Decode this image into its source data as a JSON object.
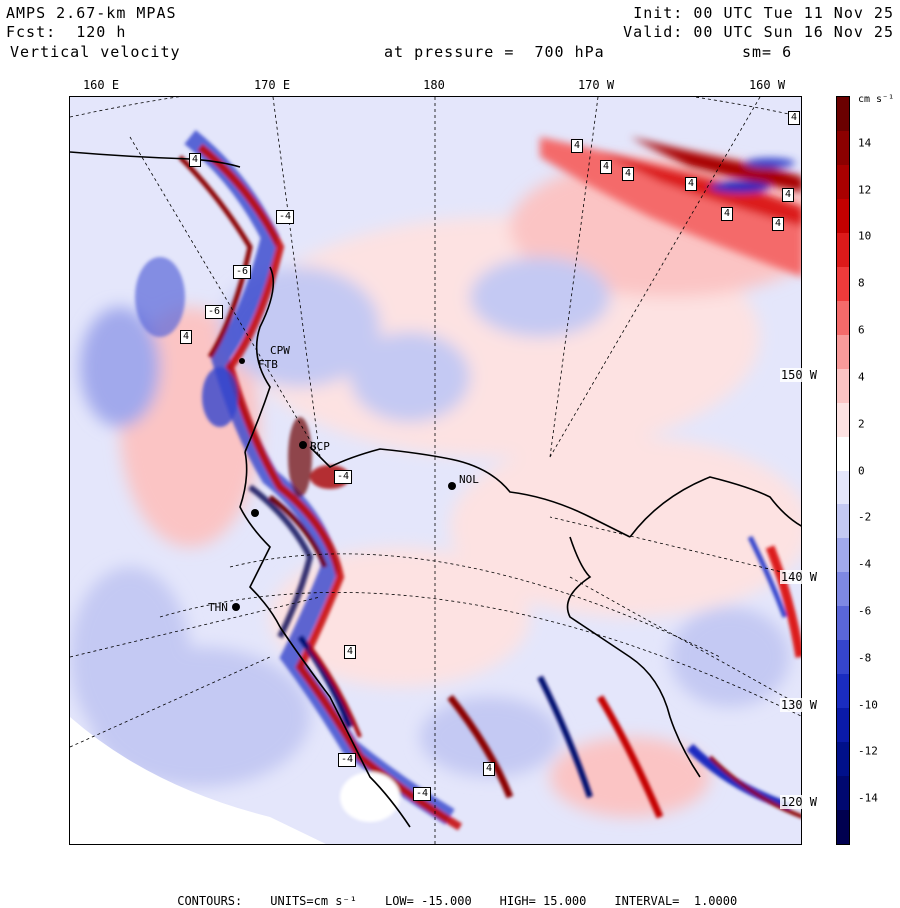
{
  "header": {
    "model": "AMPS 2.67-km MPAS",
    "forecast": "Fcst:  120 h",
    "field": "Vertical velocity",
    "init": "Init: 00 UTC Tue 11 Nov 25",
    "valid": "Valid: 00 UTC Sun 16 Nov 25",
    "level": "at pressure =  700 hPa",
    "smoothing": "sm= 6"
  },
  "longitude_labels": [
    "160 E",
    "170 E",
    "180",
    "170 W",
    "160 W"
  ],
  "latitude_labels": [
    "150 W",
    "140 W",
    "130 W",
    "120 W"
  ],
  "colorbar": {
    "unit": "cm s⁻¹",
    "ticks": [
      "14",
      "12",
      "10",
      "8",
      "6",
      "4",
      "2",
      "0",
      "-2",
      "-4",
      "-6",
      "-8",
      "-10",
      "-12",
      "-14"
    ],
    "colors": [
      "#6b0000",
      "#8b0000",
      "#a80000",
      "#c40000",
      "#dc1a1a",
      "#ee3b3b",
      "#f46a6a",
      "#f89a9a",
      "#fbc4c4",
      "#fde2e2",
      "#ffffff",
      "#e4e6fb",
      "#c4c9f3",
      "#a1a9ec",
      "#7e88e3",
      "#5a66d8",
      "#3545cc",
      "#1a2cc0",
      "#0a1aa8",
      "#00108a",
      "#000870",
      "#000050"
    ]
  },
  "stations": [
    {
      "label": "CPW"
    },
    {
      "label": "FTB"
    },
    {
      "label": "BCP"
    },
    {
      "label": "NOL"
    },
    {
      "label": "THN"
    }
  ],
  "contour_labels": [
    "4",
    "4",
    "4",
    "4",
    "4",
    "4",
    "4",
    "-4",
    "-6",
    "-6",
    "4",
    "4",
    "-4",
    "-4",
    "4",
    "-4",
    "4",
    "4"
  ],
  "footer": {
    "contours": "CONTOURS:",
    "units": "UNITS=cm s⁻¹",
    "low": "LOW= -15.000",
    "high": "HIGH= 15.000",
    "interval": "INTERVAL=  1.0000"
  }
}
